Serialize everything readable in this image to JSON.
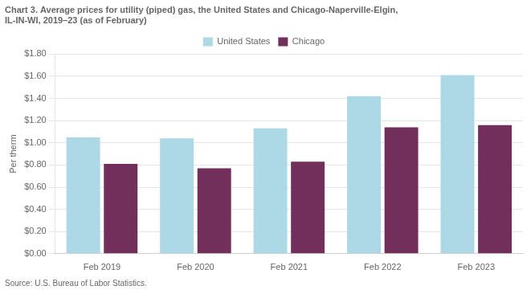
{
  "chart_data": {
    "type": "bar",
    "title": "Chart 3. Average prices for utility (piped) gas, the United States and Chicago-Naperville-Elgin,\nIL-IN-WI, 2019–23 (as of February)",
    "ylabel": "Per therm",
    "source": "Source: U.S. Bureau of Labor Statistics.",
    "categories": [
      "Feb 2019",
      "Feb 2020",
      "Feb 2021",
      "Feb 2022",
      "Feb 2023"
    ],
    "series": [
      {
        "name": "United States",
        "color": "#add8e6",
        "values": [
          1.05,
          1.04,
          1.13,
          1.42,
          1.61
        ]
      },
      {
        "name": "Chicago",
        "color": "#722f5b",
        "values": [
          0.81,
          0.77,
          0.83,
          1.14,
          1.16
        ]
      }
    ],
    "ylim": [
      0,
      1.8
    ],
    "yticks": [
      {
        "value": 0.0,
        "label": "$0.00"
      },
      {
        "value": 0.2,
        "label": "$0.20"
      },
      {
        "value": 0.4,
        "label": "$0.40"
      },
      {
        "value": 0.6,
        "label": "$0.60"
      },
      {
        "value": 0.8,
        "label": "$0.80"
      },
      {
        "value": 1.0,
        "label": "$1.00"
      },
      {
        "value": 1.2,
        "label": "$1.20"
      },
      {
        "value": 1.4,
        "label": "$1.40"
      },
      {
        "value": 1.6,
        "label": "$1.60"
      },
      {
        "value": 1.8,
        "label": "$1.80"
      }
    ],
    "grid": true,
    "legend": "top"
  }
}
